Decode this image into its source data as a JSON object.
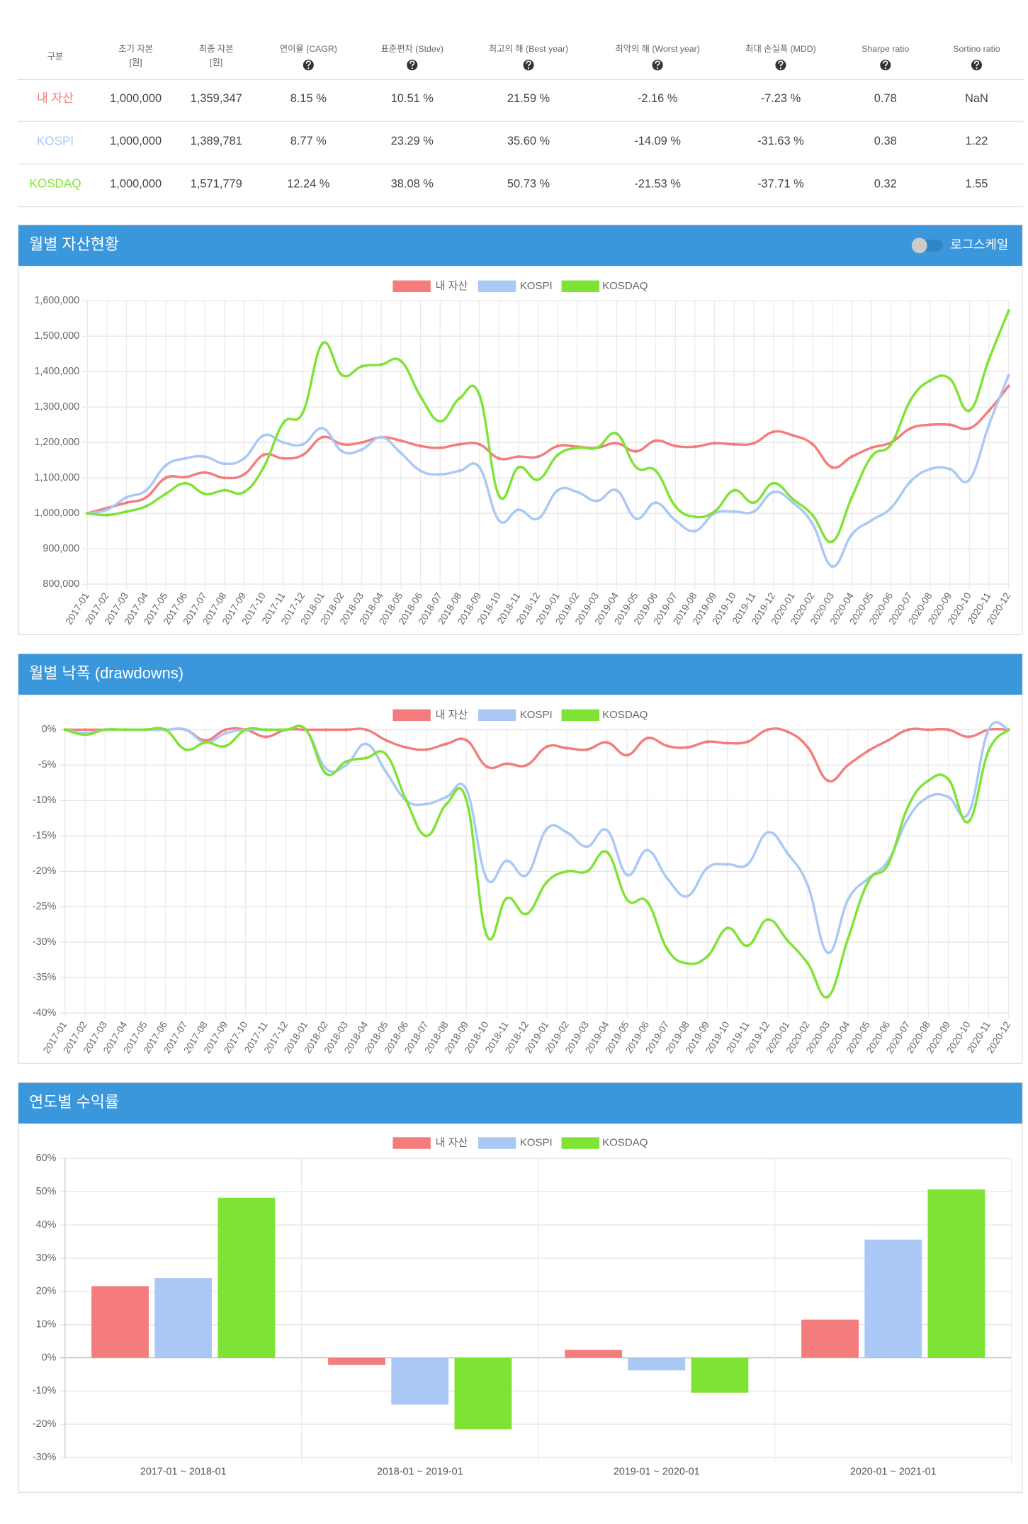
{
  "table": {
    "headers": [
      [
        "구분"
      ],
      [
        "초기 자본",
        "[원]"
      ],
      [
        "최종 자본",
        "[원]"
      ],
      [
        "연이율 (CAGR)"
      ],
      [
        "표준편차 (Stdev)"
      ],
      [
        "최고의 해 (Best year)"
      ],
      [
        "최악의 해 (Worst year)"
      ],
      [
        "최대 손실폭 (MDD)"
      ],
      [
        "Sharpe ratio"
      ],
      [
        "Sortino ratio"
      ]
    ],
    "rows": [
      [
        "내 자산",
        "1,000,000",
        "1,359,347",
        "8.15 %",
        "10.51 %",
        "21.59 %",
        "-2.16 %",
        "-7.23 %",
        "0.78",
        "NaN"
      ],
      [
        "KOSPI",
        "1,000,000",
        "1,389,781",
        "8.77 %",
        "23.29 %",
        "35.60 %",
        "-14.09 %",
        "-31.63 %",
        "0.38",
        "1.22"
      ],
      [
        "KOSDAQ",
        "1,000,000",
        "1,571,779",
        "12.24 %",
        "38.08 %",
        "50.73 %",
        "-21.53 %",
        "-37.71 %",
        "0.32",
        "1.55"
      ]
    ],
    "row_colors": [
      "#f47c7c",
      "#a9c8f5",
      "#7fe335"
    ]
  },
  "chart_data": [
    {
      "type": "line",
      "title": "월별 자산현황",
      "toggle_label": "로그스케일",
      "log_scale": false,
      "grid": true,
      "legend": "top",
      "categories": [
        "2017-01",
        "2017-02",
        "2017-03",
        "2017-04",
        "2017-05",
        "2017-06",
        "2017-07",
        "2017-08",
        "2017-09",
        "2017-10",
        "2017-11",
        "2017-12",
        "2018-01",
        "2018-02",
        "2018-03",
        "2018-04",
        "2018-05",
        "2018-06",
        "2018-07",
        "2018-08",
        "2018-09",
        "2018-10",
        "2018-11",
        "2018-12",
        "2019-01",
        "2019-02",
        "2019-03",
        "2019-04",
        "2019-05",
        "2019-06",
        "2019-07",
        "2019-08",
        "2019-09",
        "2019-10",
        "2019-11",
        "2019-12",
        "2020-01",
        "2020-02",
        "2020-03",
        "2020-04",
        "2020-05",
        "2020-06",
        "2020-07",
        "2020-08",
        "2020-09",
        "2020-10",
        "2020-11",
        "2020-12"
      ],
      "series": [
        {
          "name": "내 자산",
          "color": "#f47c7c",
          "values": [
            1000000,
            1015000,
            1030000,
            1045000,
            1100000,
            1102000,
            1115000,
            1100000,
            1110000,
            1165000,
            1155000,
            1165000,
            1215000,
            1195000,
            1200000,
            1215000,
            1205000,
            1190000,
            1185000,
            1195000,
            1195000,
            1155000,
            1160000,
            1160000,
            1190000,
            1188000,
            1185000,
            1198000,
            1175000,
            1205000,
            1190000,
            1188000,
            1198000,
            1195000,
            1198000,
            1230000,
            1220000,
            1195000,
            1130000,
            1160000,
            1185000,
            1200000,
            1240000,
            1250000,
            1250000,
            1240000,
            1290000,
            1359347
          ]
        },
        {
          "name": "KOSPI",
          "color": "#a9c8f5",
          "values": [
            1000000,
            1010000,
            1045000,
            1065000,
            1135000,
            1155000,
            1160000,
            1140000,
            1155000,
            1220000,
            1200000,
            1195000,
            1240000,
            1175000,
            1180000,
            1215000,
            1170000,
            1120000,
            1110000,
            1120000,
            1130000,
            980000,
            1010000,
            985000,
            1065000,
            1060000,
            1035000,
            1065000,
            985000,
            1030000,
            980000,
            950000,
            1000000,
            1005000,
            1005000,
            1060000,
            1030000,
            970000,
            850000,
            940000,
            980000,
            1015000,
            1090000,
            1125000,
            1125000,
            1095000,
            1250000,
            1389781
          ]
        },
        {
          "name": "KOSDAQ",
          "color": "#7fe335",
          "values": [
            1000000,
            995000,
            1005000,
            1020000,
            1055000,
            1085000,
            1055000,
            1065000,
            1060000,
            1130000,
            1255000,
            1285000,
            1480000,
            1390000,
            1415000,
            1420000,
            1430000,
            1330000,
            1260000,
            1325000,
            1335000,
            1050000,
            1130000,
            1095000,
            1165000,
            1185000,
            1185000,
            1225000,
            1130000,
            1120000,
            1020000,
            990000,
            1005000,
            1065000,
            1030000,
            1085000,
            1040000,
            995000,
            920000,
            1045000,
            1160000,
            1195000,
            1320000,
            1375000,
            1380000,
            1290000,
            1435000,
            1571779
          ]
        }
      ],
      "ylim": [
        800000,
        1600000
      ],
      "yticks": [
        {
          "value": 800000,
          "label": "800,000"
        },
        {
          "value": 900000,
          "label": "900,000"
        },
        {
          "value": 1000000,
          "label": "1,000,000"
        },
        {
          "value": 1100000,
          "label": "1,100,000"
        },
        {
          "value": 1200000,
          "label": "1,200,000"
        },
        {
          "value": 1300000,
          "label": "1,300,000"
        },
        {
          "value": 1400000,
          "label": "1,400,000"
        },
        {
          "value": 1500000,
          "label": "1,500,000"
        },
        {
          "value": 1600000,
          "label": "1,600,000"
        }
      ]
    },
    {
      "type": "line",
      "title": "월별 낙폭 (drawdowns)",
      "grid": true,
      "legend": "top",
      "categories": [
        "2017-01",
        "2017-02",
        "2017-03",
        "2017-04",
        "2017-05",
        "2017-06",
        "2017-07",
        "2017-08",
        "2017-09",
        "2017-10",
        "2017-11",
        "2017-12",
        "2018-01",
        "2018-02",
        "2018-03",
        "2018-04",
        "2018-05",
        "2018-06",
        "2018-07",
        "2018-08",
        "2018-09",
        "2018-10",
        "2018-11",
        "2018-12",
        "2019-01",
        "2019-02",
        "2019-03",
        "2019-04",
        "2019-05",
        "2019-06",
        "2019-07",
        "2019-08",
        "2019-09",
        "2019-10",
        "2019-11",
        "2019-12",
        "2020-01",
        "2020-02",
        "2020-03",
        "2020-04",
        "2020-05",
        "2020-06",
        "2020-07",
        "2020-08",
        "2020-09",
        "2020-10",
        "2020-11",
        "2020-12"
      ],
      "series": [
        {
          "name": "내 자산",
          "color": "#f47c7c",
          "values": [
            0,
            0,
            0,
            0,
            0,
            0,
            0,
            -1.5,
            0,
            0,
            -1,
            0,
            0,
            0,
            0,
            0,
            -1.5,
            -2.5,
            -2.8,
            -2,
            -1.5,
            -5.2,
            -4.8,
            -5,
            -2.4,
            -2.6,
            -2.8,
            -1.8,
            -3.6,
            -1.2,
            -2.3,
            -2.5,
            -1.7,
            -1.9,
            -1.7,
            0,
            -0.3,
            -2.5,
            -7.2,
            -5,
            -3,
            -1.5,
            0,
            0,
            0,
            -1,
            0,
            0
          ]
        },
        {
          "name": "KOSPI",
          "color": "#a9c8f5",
          "values": [
            0,
            -0.5,
            0,
            0,
            0,
            0,
            0,
            -1.8,
            -0.5,
            0,
            0,
            0,
            0,
            -5.5,
            -5,
            -2,
            -6,
            -10,
            -10.5,
            -9.5,
            -8.5,
            -21,
            -18.5,
            -20.5,
            -14,
            -14.5,
            -16.5,
            -14.2,
            -20.5,
            -17,
            -21,
            -23.5,
            -19.5,
            -19,
            -19,
            -14.5,
            -17.5,
            -22,
            -31.5,
            -24,
            -21,
            -18.5,
            -12.5,
            -9.5,
            -9.5,
            -11.8,
            0,
            0
          ]
        },
        {
          "name": "KOSDAQ",
          "color": "#7fe335",
          "values": [
            0,
            -0.7,
            0,
            0,
            0,
            0,
            -2.8,
            -1.8,
            -2.3,
            0,
            0,
            0,
            0,
            -6.2,
            -4.5,
            -4,
            -3.5,
            -10,
            -15,
            -10.5,
            -10,
            -29,
            -23.8,
            -26,
            -21.5,
            -20,
            -20,
            -17.3,
            -24,
            -24.3,
            -31,
            -33,
            -32,
            -28,
            -30.5,
            -26.8,
            -29.8,
            -33,
            -37.7,
            -29.5,
            -21.5,
            -19,
            -10.8,
            -7.2,
            -7,
            -13,
            -3,
            0
          ]
        }
      ],
      "ylim": [
        -40,
        0
      ],
      "yticks": [
        {
          "value": 0,
          "label": "0%"
        },
        {
          "value": -5,
          "label": "-5%"
        },
        {
          "value": -10,
          "label": "-10%"
        },
        {
          "value": -15,
          "label": "-15%"
        },
        {
          "value": -20,
          "label": "-20%"
        },
        {
          "value": -25,
          "label": "-25%"
        },
        {
          "value": -30,
          "label": "-30%"
        },
        {
          "value": -35,
          "label": "-35%"
        },
        {
          "value": -40,
          "label": "-40%"
        }
      ]
    },
    {
      "type": "bar",
      "title": "연도별 수익률",
      "grid": true,
      "legend": "top",
      "categories": [
        "2017-01 ~ 2018-01",
        "2018-01 ~ 2019-01",
        "2019-01 ~ 2020-01",
        "2020-01 ~ 2021-01"
      ],
      "series": [
        {
          "name": "내 자산",
          "color": "#f47c7c",
          "values": [
            21.59,
            -2.16,
            2.4,
            11.5
          ]
        },
        {
          "name": "KOSPI",
          "color": "#a9c8f5",
          "values": [
            24,
            -14.09,
            -3.8,
            35.6
          ]
        },
        {
          "name": "KOSDAQ",
          "color": "#7fe335",
          "values": [
            48.2,
            -21.53,
            -10.5,
            50.73
          ]
        }
      ],
      "ylim": [
        -30,
        60
      ],
      "yticks": [
        {
          "value": -30,
          "label": "-30%"
        },
        {
          "value": -20,
          "label": "-20%"
        },
        {
          "value": -10,
          "label": "-10%"
        },
        {
          "value": 0,
          "label": "0%"
        },
        {
          "value": 10,
          "label": "10%"
        },
        {
          "value": 20,
          "label": "20%"
        },
        {
          "value": 30,
          "label": "30%"
        },
        {
          "value": 40,
          "label": "40%"
        },
        {
          "value": 50,
          "label": "50%"
        },
        {
          "value": 60,
          "label": "60%"
        }
      ]
    }
  ]
}
